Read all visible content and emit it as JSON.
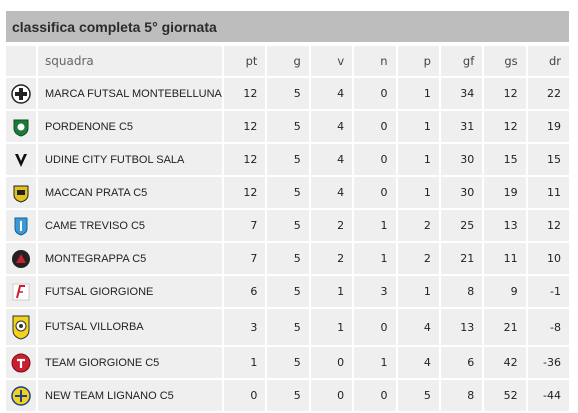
{
  "title": "classifica completa 5° giornata",
  "columns": {
    "squadra": "squadra",
    "pt": "pt",
    "g": "g",
    "v": "v",
    "n": "n",
    "p": "p",
    "gf": "gf",
    "gs": "gs",
    "dr": "dr"
  },
  "rows": [
    {
      "team": "MARCA FUTSAL MONTEBELLUNA",
      "pt": "12",
      "g": "5",
      "v": "4",
      "n": "0",
      "p": "1",
      "gf": "34",
      "gs": "12",
      "dr": "22",
      "logo": "marca-futsal-logo"
    },
    {
      "team": "PORDENONE C5",
      "pt": "12",
      "g": "5",
      "v": "4",
      "n": "0",
      "p": "1",
      "gf": "31",
      "gs": "12",
      "dr": "19",
      "logo": "pordenone-logo"
    },
    {
      "team": "UDINE CITY FUTBOL SALA",
      "pt": "12",
      "g": "5",
      "v": "4",
      "n": "0",
      "p": "1",
      "gf": "30",
      "gs": "15",
      "dr": "15",
      "logo": "udine-city-logo"
    },
    {
      "team": "MACCAN PRATA C5",
      "pt": "12",
      "g": "5",
      "v": "4",
      "n": "0",
      "p": "1",
      "gf": "30",
      "gs": "19",
      "dr": "11",
      "logo": "maccan-prata-logo"
    },
    {
      "team": "CAME TREVISO C5",
      "pt": "7",
      "g": "5",
      "v": "2",
      "n": "1",
      "p": "2",
      "gf": "25",
      "gs": "13",
      "dr": "12",
      "logo": "came-treviso-logo"
    },
    {
      "team": "MONTEGRAPPA C5",
      "pt": "7",
      "g": "5",
      "v": "2",
      "n": "1",
      "p": "2",
      "gf": "21",
      "gs": "11",
      "dr": "10",
      "logo": "montegrappa-logo"
    },
    {
      "team": "FUTSAL GIORGIONE",
      "pt": "6",
      "g": "5",
      "v": "1",
      "n": "3",
      "p": "1",
      "gf": "8",
      "gs": "9",
      "dr": "-1",
      "logo": "futsal-giorgione-logo"
    },
    {
      "team": "FUTSAL VILLORBA",
      "pt": "3",
      "g": "5",
      "v": "1",
      "n": "0",
      "p": "4",
      "gf": "13",
      "gs": "21",
      "dr": "-8",
      "logo": "futsal-villorba-logo"
    },
    {
      "team": "TEAM GIORGIONE C5",
      "pt": "1",
      "g": "5",
      "v": "0",
      "n": "1",
      "p": "4",
      "gf": "6",
      "gs": "42",
      "dr": "-36",
      "logo": "team-giorgione-logo"
    },
    {
      "team": "NEW TEAM LIGNANO C5",
      "pt": "0",
      "g": "5",
      "v": "0",
      "n": "0",
      "p": "5",
      "gf": "8",
      "gs": "52",
      "dr": "-44",
      "logo": "new-team-lignano-logo"
    }
  ]
}
